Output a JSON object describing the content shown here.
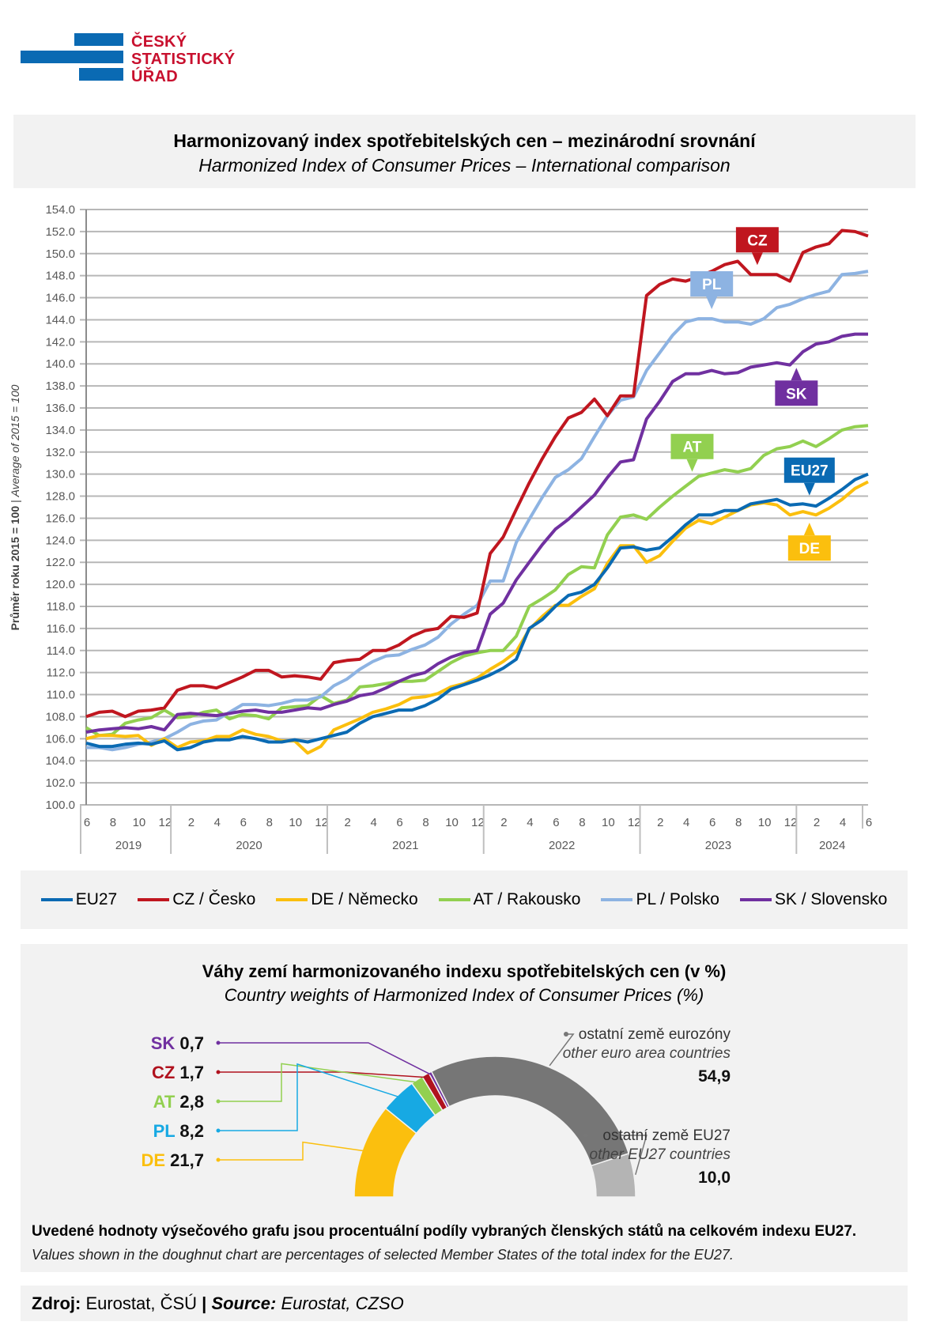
{
  "logo": {
    "line1": "ČESKÝ",
    "line2": "STATISTICKÝ",
    "line3": "ÚŘAD",
    "text_color": "#c8102e",
    "bar_color": "#0a6ab3"
  },
  "header": {
    "title_cz": "Harmonizovaný index spotřebitelských cen – mezinárodní srovnání",
    "title_en": "Harmonized Index of Consumer Prices – International comparison"
  },
  "chart_data": [
    {
      "type": "line",
      "title": "Harmonizovaný index spotřebitelských cen – mezinárodní srovnání",
      "subtitle": "Harmonized Index of Consumer Prices – International comparison",
      "ylabel_cz": "Průměr roku 2015 = 100",
      "ylabel_en": "Average of 2015 = 100",
      "ylabel_sep": " | ",
      "ylim": [
        100,
        154
      ],
      "ytick_step": 2,
      "yticks": [
        "100.0",
        "102.0",
        "104.0",
        "106.0",
        "108.0",
        "110.0",
        "112.0",
        "114.0",
        "116.0",
        "118.0",
        "120.0",
        "122.0",
        "124.0",
        "126.0",
        "128.0",
        "130.0",
        "132.0",
        "134.0",
        "136.0",
        "138.0",
        "140.0",
        "142.0",
        "144.0",
        "146.0",
        "148.0",
        "150.0",
        "152.0",
        "154.0"
      ],
      "grid": true,
      "x_start": "2019-06",
      "x_end": "2024-06",
      "month_ticks": [
        "6",
        "8",
        "10",
        "12",
        "2",
        "4",
        "6",
        "8",
        "10",
        "12",
        "2",
        "4",
        "6",
        "8",
        "10",
        "12",
        "2",
        "4",
        "6",
        "8",
        "10",
        "12",
        "2",
        "4",
        "6",
        "8",
        "10",
        "12",
        "2",
        "4",
        "6"
      ],
      "years": [
        "2019",
        "2020",
        "2021",
        "2022",
        "2023",
        "2024"
      ],
      "legend_position": "bottom",
      "series": [
        {
          "name": "EU27",
          "label": "EU27",
          "color": "#0a6ab3",
          "values": [
            105.6,
            105.3,
            105.3,
            105.5,
            105.6,
            105.5,
            105.8,
            105.0,
            105.2,
            105.7,
            105.9,
            105.9,
            106.2,
            106.0,
            105.7,
            105.7,
            105.9,
            105.7,
            106.0,
            106.3,
            106.6,
            107.4,
            108.0,
            108.3,
            108.6,
            108.6,
            109.0,
            109.6,
            110.5,
            110.9,
            111.3,
            111.8,
            112.4,
            113.2,
            116.0,
            116.8,
            118.0,
            119.0,
            119.3,
            120.0,
            121.5,
            123.3,
            123.4,
            123.1,
            123.3,
            124.3,
            125.4,
            126.3,
            126.3,
            126.7,
            126.7,
            127.3,
            127.5,
            127.7,
            127.2,
            127.3,
            127.1,
            127.8,
            128.6,
            129.5,
            130.0
          ]
        },
        {
          "name": "CZ / Česko",
          "label": "CZ",
          "color": "#c0161f",
          "values": [
            108.0,
            108.4,
            108.5,
            108.0,
            108.5,
            108.6,
            108.8,
            110.4,
            110.8,
            110.8,
            110.6,
            111.1,
            111.6,
            112.2,
            112.2,
            111.6,
            111.7,
            111.6,
            111.4,
            112.9,
            113.1,
            113.2,
            114.0,
            114.0,
            114.5,
            115.3,
            115.8,
            116.0,
            117.1,
            117.0,
            117.4,
            122.8,
            124.3,
            126.8,
            129.2,
            131.4,
            133.4,
            135.1,
            135.6,
            136.8,
            135.3,
            137.1,
            137.1,
            146.2,
            147.2,
            147.7,
            147.5,
            147.9,
            148.4,
            149.0,
            149.3,
            148.1,
            148.1,
            148.1,
            147.5,
            150.1,
            150.6,
            150.9,
            152.1,
            152.0,
            151.6
          ]
        },
        {
          "name": "DE / Německo",
          "label": "DE",
          "color": "#fbbf0e",
          "values": [
            106.0,
            106.3,
            106.3,
            106.2,
            106.3,
            105.4,
            106.0,
            105.2,
            105.7,
            105.8,
            106.2,
            106.2,
            106.8,
            106.4,
            106.2,
            105.8,
            105.8,
            104.7,
            105.3,
            106.8,
            107.3,
            107.8,
            108.4,
            108.7,
            109.1,
            109.7,
            109.8,
            110.1,
            110.7,
            111.0,
            111.5,
            112.3,
            113.0,
            113.9,
            115.9,
            117.1,
            118.1,
            118.1,
            118.9,
            119.6,
            121.9,
            123.5,
            123.5,
            122.0,
            122.6,
            123.9,
            125.1,
            125.8,
            125.5,
            126.1,
            126.7,
            127.2,
            127.4,
            127.2,
            126.3,
            126.6,
            126.3,
            126.9,
            127.7,
            128.7,
            129.3
          ]
        },
        {
          "name": "AT / Rakousko",
          "label": "AT",
          "color": "#92d050",
          "values": [
            107.0,
            106.3,
            106.4,
            107.4,
            107.7,
            107.9,
            108.6,
            107.9,
            108.0,
            108.4,
            108.6,
            107.8,
            108.2,
            108.1,
            107.8,
            108.8,
            108.9,
            109.0,
            109.9,
            109.2,
            109.5,
            110.7,
            110.8,
            111.0,
            111.2,
            111.2,
            111.3,
            112.1,
            112.9,
            113.5,
            113.8,
            114.0,
            114.0,
            115.3,
            118.0,
            118.7,
            119.5,
            120.9,
            121.6,
            121.5,
            124.5,
            126.1,
            126.3,
            125.9,
            127.0,
            128.0,
            128.9,
            129.8,
            130.1,
            130.4,
            130.2,
            130.5,
            131.7,
            132.3,
            132.5,
            133.0,
            132.5,
            133.2,
            134.0,
            134.3,
            134.4
          ]
        },
        {
          "name": "PL / Polsko",
          "label": "PL",
          "color": "#8db3e2",
          "values": [
            105.2,
            105.2,
            105.0,
            105.2,
            105.5,
            105.7,
            106.0,
            106.6,
            107.3,
            107.6,
            107.7,
            108.4,
            109.1,
            109.1,
            109.0,
            109.2,
            109.5,
            109.5,
            109.8,
            110.8,
            111.4,
            112.3,
            113.0,
            113.5,
            113.6,
            114.1,
            114.5,
            115.2,
            116.4,
            117.3,
            118.1,
            120.3,
            120.3,
            123.8,
            125.9,
            127.9,
            129.7,
            130.4,
            131.4,
            133.4,
            135.3,
            136.7,
            137.0,
            139.4,
            141.0,
            142.6,
            143.8,
            144.1,
            144.1,
            143.8,
            143.8,
            143.6,
            144.1,
            145.1,
            145.4,
            145.9,
            146.3,
            146.6,
            148.1,
            148.2,
            148.4
          ]
        },
        {
          "name": "SK / Slovensko",
          "label": "SK",
          "color": "#7030a0",
          "values": [
            106.6,
            106.8,
            106.9,
            107.0,
            106.9,
            107.1,
            106.8,
            108.2,
            108.3,
            108.2,
            108.1,
            108.3,
            108.5,
            108.6,
            108.4,
            108.4,
            108.6,
            108.8,
            108.7,
            109.1,
            109.4,
            109.9,
            110.1,
            110.6,
            111.2,
            111.7,
            112.0,
            112.8,
            113.4,
            113.8,
            114.0,
            117.3,
            118.3,
            120.4,
            122.0,
            123.6,
            125.0,
            125.9,
            127.0,
            128.1,
            129.7,
            131.1,
            131.3,
            135.0,
            136.6,
            138.4,
            139.1,
            139.1,
            139.4,
            139.1,
            139.2,
            139.7,
            139.9,
            140.1,
            139.9,
            141.1,
            141.8,
            142.0,
            142.5,
            142.7,
            142.7
          ]
        }
      ],
      "annotations": [
        {
          "text": "CZ",
          "series": "CZ / Česko",
          "color": "#c0161f"
        },
        {
          "text": "PL",
          "series": "PL / Polsko",
          "color": "#8db3e2"
        },
        {
          "text": "SK",
          "series": "SK / Slovensko",
          "color": "#7030a0"
        },
        {
          "text": "AT",
          "series": "AT / Rakousko",
          "color": "#92d050"
        },
        {
          "text": "EU27",
          "series": "EU27",
          "color": "#0a6ab3"
        },
        {
          "text": "DE",
          "series": "DE / Německo",
          "color": "#fbbf0e"
        }
      ]
    },
    {
      "type": "pie",
      "variant": "half-doughnut",
      "title": "Váhy zemí harmonizovaného indexu spotřebitelských cen (v %)",
      "subtitle": "Country weights of Harmonized Index of Consumer Prices (%)",
      "slices": [
        {
          "label": "DE",
          "value": 21.7,
          "value_text": "21,7",
          "color": "#fbbf0e"
        },
        {
          "label": "PL",
          "value": 8.2,
          "value_text": "8,2",
          "color": "#17a9e3"
        },
        {
          "label": "AT",
          "value": 2.8,
          "value_text": "2,8",
          "color": "#92d050"
        },
        {
          "label": "CZ",
          "value": 1.7,
          "value_text": "1,7",
          "color": "#b0121e"
        },
        {
          "label": "SK",
          "value": 0.7,
          "value_text": "0,7",
          "color": "#7030a0"
        },
        {
          "label": "ostatní země eurozóny",
          "label_en": "other euro area countries",
          "value": 54.9,
          "value_text": "54,9",
          "color": "#767676"
        },
        {
          "label": "ostatní země EU27",
          "label_en": "other EU27 countries",
          "value": 10.0,
          "value_text": "10,0",
          "color": "#b4b4b4"
        }
      ]
    }
  ],
  "legend": [
    {
      "label": "EU27",
      "color": "#0a6ab3"
    },
    {
      "label": "CZ / Česko",
      "color": "#c0161f"
    },
    {
      "label": "DE / Německo",
      "color": "#fbbf0e"
    },
    {
      "label": "AT / Rakousko",
      "color": "#92d050"
    },
    {
      "label": "PL / Polsko",
      "color": "#8db3e2"
    },
    {
      "label": "SK / Slovensko",
      "color": "#7030a0"
    }
  ],
  "notes": {
    "cz": "Uvedené hodnoty výsečového grafu jsou procentuální podíly vybraných členských států na celkovém indexu EU27.",
    "en": "Values shown in the doughnut chart are percentages of selected Member States of the total index for the EU27."
  },
  "source": {
    "label_cz": "Zdroj:",
    "text_cz": " Eurostat, ČSÚ ",
    "sep": "|",
    "label_en": " Source:",
    "text_en": " Eurostat, CZSO"
  }
}
